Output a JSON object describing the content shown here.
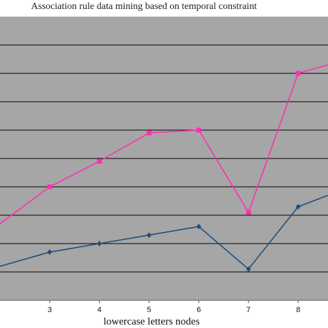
{
  "chart_data": {
    "type": "line",
    "title": "Association  rule  data mining  based on temporal  constraint",
    "xlabel": "lowercase letters nodes",
    "ylabel": "",
    "x": [
      2,
      3,
      4,
      5,
      6,
      7,
      8,
      8.6
    ],
    "x_ticks": [
      "3",
      "4",
      "5",
      "6",
      "7",
      "8"
    ],
    "xlim": [
      2.0,
      8.6
    ],
    "ylim": [
      0,
      10
    ],
    "grid_lines_y": [
      1,
      2,
      3,
      4,
      5,
      6,
      7,
      8,
      9
    ],
    "grid": true,
    "background": "#a6a6a6",
    "series": [
      {
        "color": "#ff2fb0",
        "marker": "square",
        "values": [
          2.7,
          4.0,
          4.9,
          5.9,
          6.0,
          3.1,
          8.0,
          8.3
        ]
      },
      {
        "color": "#1f4e79",
        "marker": "diamond",
        "values": [
          1.2,
          1.7,
          2.0,
          2.3,
          2.6,
          1.1,
          3.3,
          3.7
        ]
      }
    ]
  }
}
